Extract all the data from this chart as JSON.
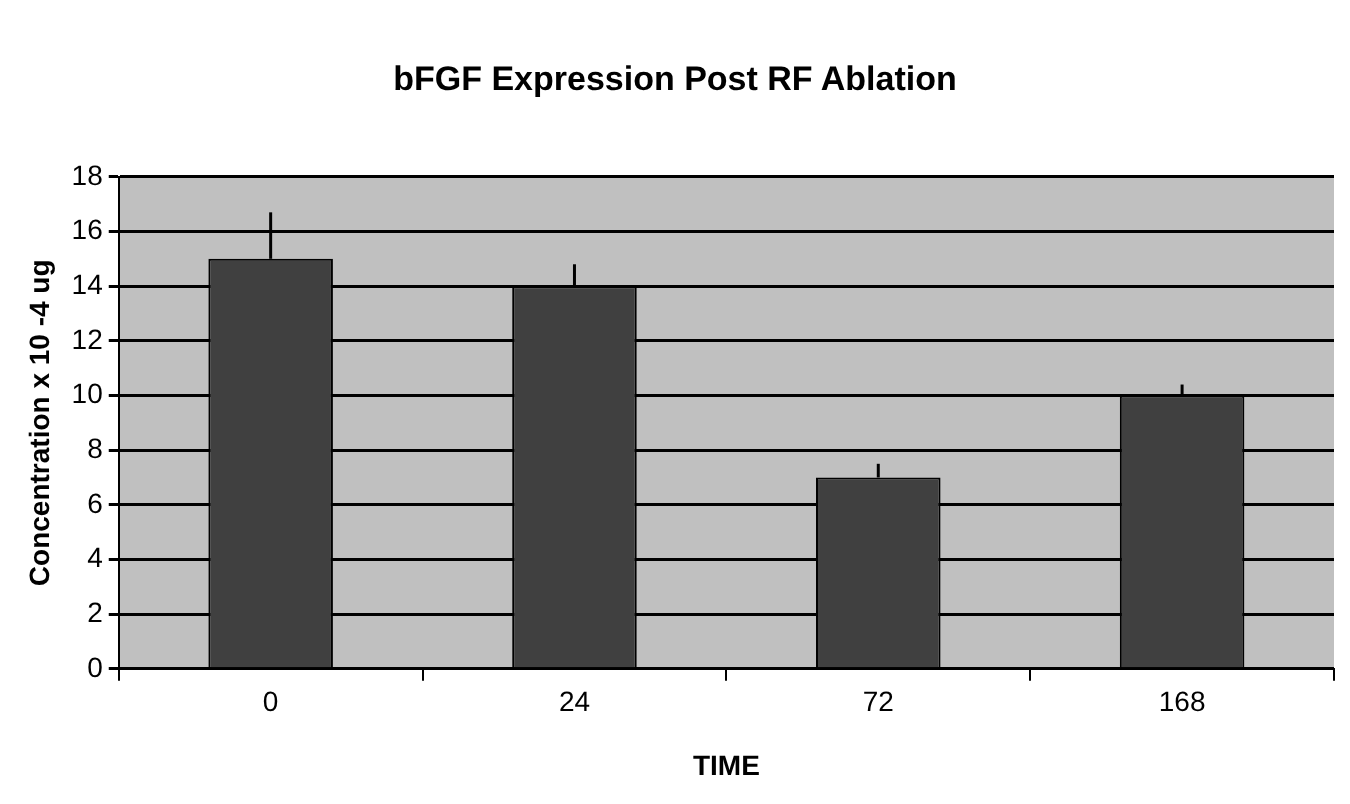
{
  "chart_data": {
    "type": "bar",
    "title": "bFGF Expression Post RF Ablation",
    "xlabel": "TIME",
    "ylabel": "Concentration x 10 -4 ug",
    "categories": [
      "0",
      "24",
      "72",
      "168"
    ],
    "values": [
      15,
      14,
      7,
      10
    ],
    "color": "#404040",
    "errors": [
      [
        15,
        16.7
      ],
      [
        14,
        14.8
      ],
      [
        7,
        7.5
      ],
      [
        10,
        10.4
      ]
    ],
    "ylim": [
      0,
      18
    ],
    "yticks": [
      0,
      2,
      4,
      6,
      8,
      10,
      12,
      14,
      16,
      18
    ],
    "grid": "y"
  }
}
